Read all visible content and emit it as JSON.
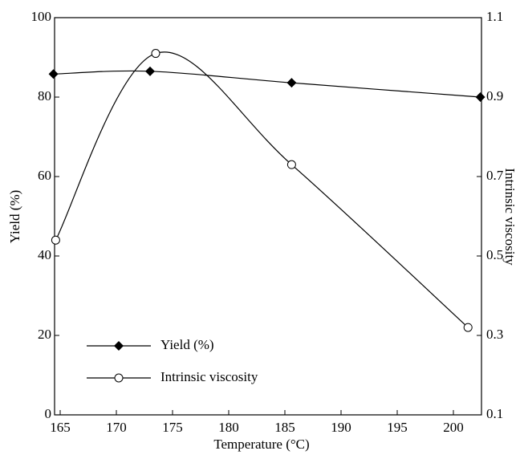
{
  "chart_data": {
    "type": "line",
    "x_label": "Temperature (°C)",
    "y_label": "Yield (%)",
    "y2_label": "Intrinsic viscosity",
    "xlim": [
      164.5,
      202.5
    ],
    "xticks": [
      165,
      170,
      175,
      180,
      185,
      190,
      195,
      200
    ],
    "ylim": [
      0,
      100
    ],
    "yticks": [
      0,
      20,
      40,
      60,
      80,
      100
    ],
    "y2lim": [
      0.1,
      1.1
    ],
    "y2ticks": [
      0.1,
      0.3,
      0.5,
      0.7,
      0.9,
      1.1
    ],
    "legend": "lower left",
    "series": [
      {
        "name": "Yield (%)",
        "color": "#000000",
        "marker": "diamond",
        "x": [
          164.4,
          173.0,
          185.6,
          202.4
        ],
        "values": [
          85.8,
          86.5,
          83.6,
          80.0
        ]
      },
      {
        "name": "Intrinsic viscosity",
        "color": "#000000",
        "marker": "open-circle",
        "axis": "y2",
        "x": [
          164.6,
          173.5,
          185.6,
          201.3
        ],
        "values": [
          0.54,
          1.01,
          0.73,
          0.32
        ]
      }
    ]
  }
}
